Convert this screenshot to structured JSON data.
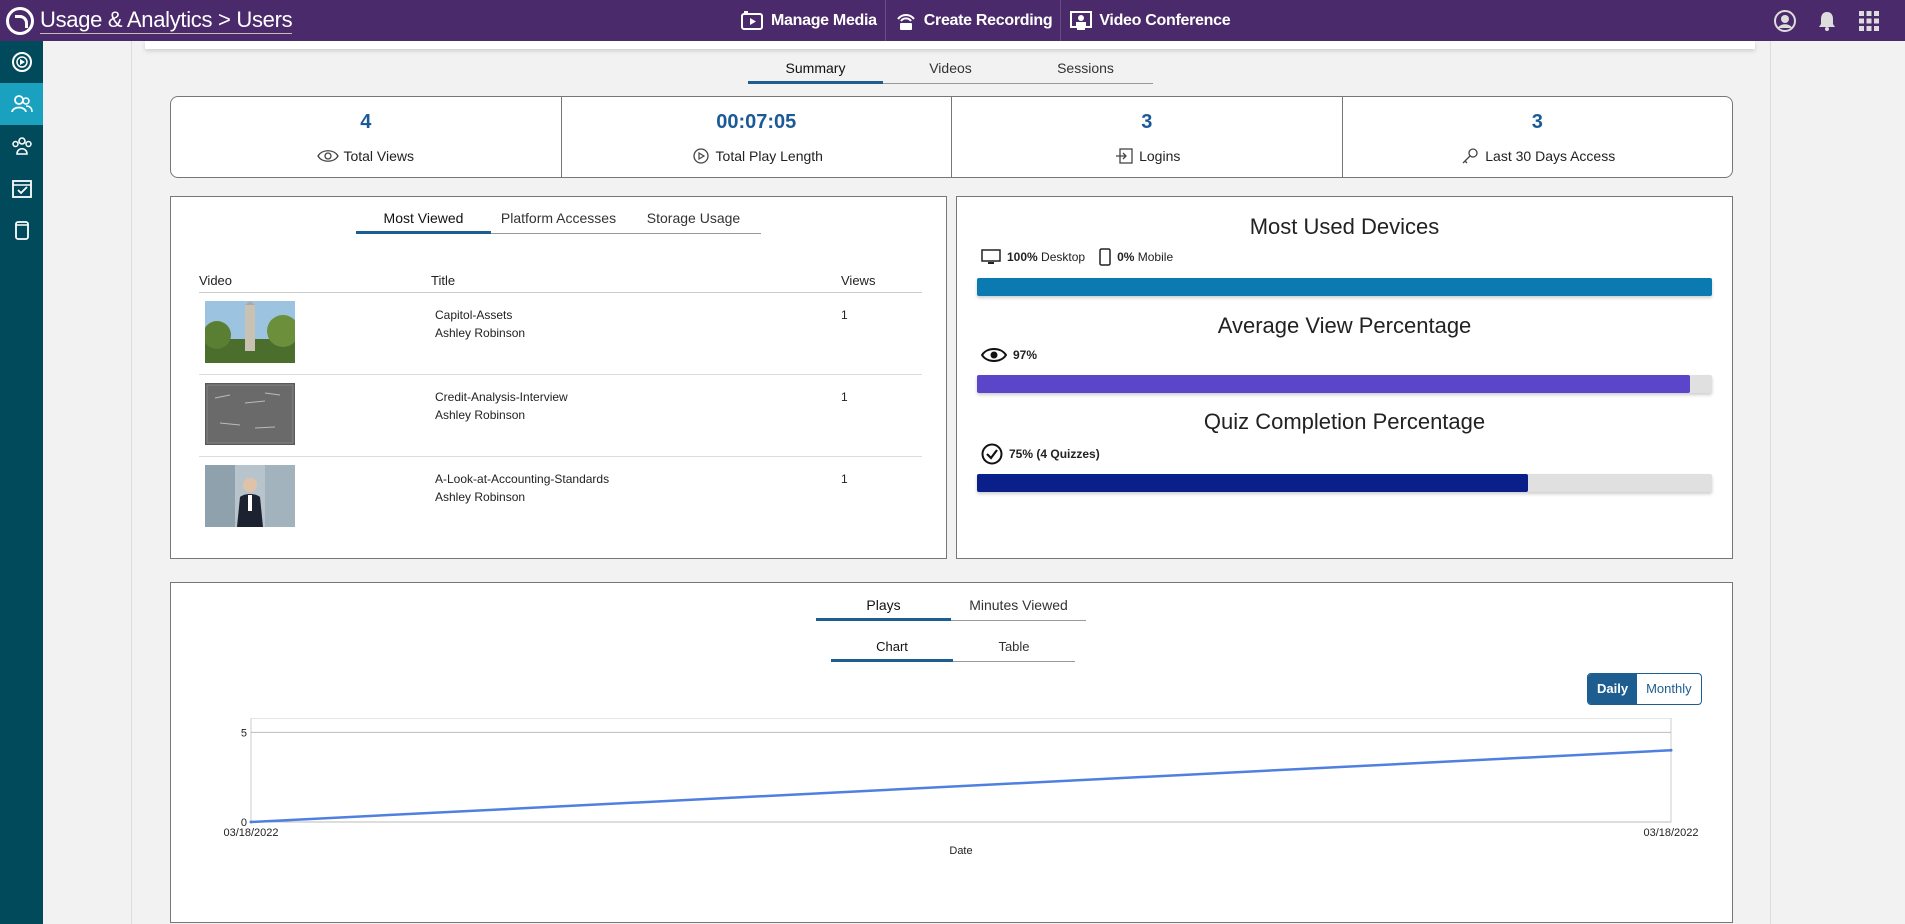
{
  "header": {
    "title": "Usage & Analytics > Users",
    "nav": [
      {
        "label": "Manage Media",
        "icon": "film-icon"
      },
      {
        "label": "Create Recording",
        "icon": "broadcast-icon"
      },
      {
        "label": "Video Conference",
        "icon": "conference-icon"
      }
    ],
    "right_icons": [
      "user-profile-icon",
      "bell-icon",
      "apps-grid-icon"
    ]
  },
  "sidebar": {
    "items": [
      {
        "icon": "media-icon",
        "active": false
      },
      {
        "icon": "users-icon",
        "active": true
      },
      {
        "icon": "groups-icon",
        "active": false
      },
      {
        "icon": "calendar-check-icon",
        "active": false
      },
      {
        "icon": "device-icon",
        "active": false
      }
    ]
  },
  "main_tabs": [
    "Summary",
    "Videos",
    "Sessions"
  ],
  "stats": [
    {
      "value": "4",
      "label": "Total Views",
      "icon": "eye-icon"
    },
    {
      "value": "00:07:05",
      "label": "Total Play Length",
      "icon": "play-circle-icon"
    },
    {
      "value": "3",
      "label": "Logins",
      "icon": "login-icon"
    },
    {
      "value": "3",
      "label": "Last 30 Days Access",
      "icon": "key-icon"
    }
  ],
  "most_viewed": {
    "tabs": [
      "Most Viewed",
      "Platform Accesses",
      "Storage Usage"
    ],
    "columns": [
      "Video",
      "Title",
      "Views"
    ],
    "rows": [
      {
        "title": "Capitol-Assets",
        "author": "Ashley Robinson",
        "views": "1"
      },
      {
        "title": "Credit-Analysis-Interview",
        "author": "Ashley Robinson",
        "views": "1"
      },
      {
        "title": "A-Look-at-Accounting-Standards",
        "author": "Ashley Robinson",
        "views": "1"
      }
    ]
  },
  "devices": {
    "title": "Most Used Devices",
    "desktop_pct": "100%",
    "desktop_label": "Desktop",
    "mobile_pct": "0%",
    "mobile_label": "Mobile",
    "desktop_fraction": 1.0,
    "bar_color": "#0a7ab0"
  },
  "avg_view": {
    "title": "Average View Percentage",
    "value": "97%",
    "fraction": 0.97,
    "bar_color": "#5b45c9"
  },
  "quiz": {
    "title": "Quiz Completion Percentage",
    "value": "75% (4 Quizzes)",
    "fraction": 0.75,
    "bar_color": "#0b1f8a"
  },
  "plays": {
    "tabs": [
      "Plays",
      "Minutes Viewed"
    ],
    "view_tabs": [
      "Chart",
      "Table"
    ],
    "toggle": [
      "Daily",
      "Monthly"
    ]
  },
  "chart_data": {
    "type": "line",
    "x": [
      "03/18/2022",
      "03/18/2022"
    ],
    "series": [
      {
        "values": [
          0,
          4
        ]
      }
    ],
    "xlabel": "Date",
    "ylabel": "",
    "yticks": [
      0,
      5
    ],
    "ylim": [
      0,
      5.8
    ],
    "grid": true,
    "line_color": "#4f7fe0"
  }
}
